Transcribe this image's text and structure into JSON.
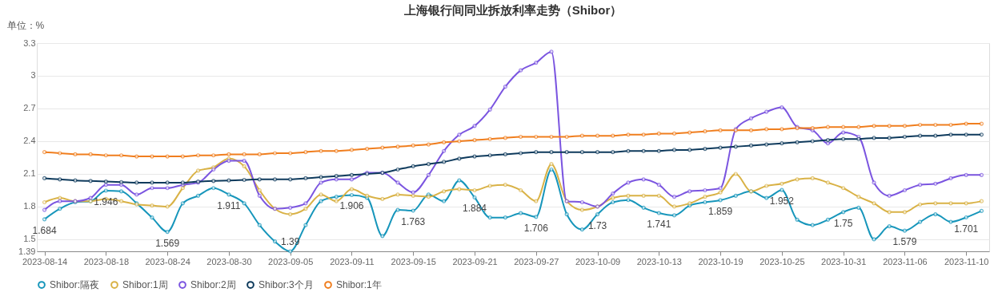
{
  "chart_data": {
    "type": "line",
    "title": "上海银行间同业拆放利率走势（Shibor）",
    "ylabel": "单位：%",
    "categories": [
      "2023-08-14",
      null,
      null,
      null,
      "2023-08-18",
      null,
      null,
      null,
      "2023-08-24",
      null,
      null,
      null,
      "2023-08-30",
      null,
      null,
      null,
      "2023-09-05",
      null,
      null,
      null,
      "2023-09-11",
      null,
      null,
      null,
      "2023-09-15",
      null,
      null,
      null,
      "2023-09-21",
      null,
      null,
      null,
      "2023-09-27",
      null,
      null,
      null,
      "2023-10-09",
      null,
      null,
      null,
      "2023-10-13",
      null,
      null,
      null,
      "2023-10-19",
      null,
      null,
      null,
      "2023-10-25",
      null,
      null,
      null,
      "2023-10-31",
      null,
      null,
      null,
      "2023-11-06",
      null,
      null,
      null,
      "2023-11-10",
      null
    ],
    "ylim": [
      1.39,
      3.3
    ],
    "yticks": [
      1.39,
      1.5,
      1.8,
      2.1,
      2.4,
      2.7,
      3,
      3.3
    ],
    "grid": "y",
    "legend": "bottom",
    "marker": "circle",
    "line_style": "solid",
    "series": [
      {
        "name": "Shibor:隔夜",
        "color": "#1796bb",
        "values": [
          1.684,
          1.78,
          1.84,
          1.85,
          1.946,
          1.94,
          1.83,
          1.7,
          1.569,
          1.83,
          1.9,
          1.97,
          1.911,
          1.83,
          1.63,
          1.48,
          1.39,
          1.63,
          1.85,
          1.89,
          1.906,
          1.88,
          1.53,
          1.77,
          1.763,
          1.91,
          1.85,
          2.04,
          1.884,
          1.7,
          1.7,
          1.74,
          1.706,
          2.14,
          1.73,
          1.59,
          1.73,
          1.84,
          1.86,
          1.79,
          1.741,
          1.72,
          1.81,
          1.84,
          1.859,
          1.9,
          1.94,
          1.88,
          1.952,
          1.68,
          1.63,
          1.68,
          1.75,
          1.79,
          1.5,
          1.62,
          1.579,
          1.66,
          1.73,
          1.66,
          1.701,
          1.76
        ],
        "value_labels": [
          "1.684",
          null,
          null,
          null,
          "1.946",
          null,
          null,
          null,
          "1.569",
          null,
          null,
          null,
          "1.911",
          null,
          null,
          null,
          "1.39",
          null,
          null,
          null,
          "1.906",
          null,
          null,
          null,
          "1.763",
          null,
          null,
          null,
          "1.884",
          null,
          null,
          null,
          "1.706",
          null,
          null,
          null,
          "1.73",
          null,
          null,
          null,
          "1.741",
          null,
          null,
          null,
          "1.859",
          null,
          null,
          null,
          "1.952",
          null,
          null,
          null,
          "1.75",
          null,
          null,
          null,
          "1.579",
          null,
          null,
          null,
          "1.701",
          null
        ]
      },
      {
        "name": "Shibor:1周",
        "color": "#d9b246",
        "values": [
          1.84,
          1.88,
          1.85,
          1.85,
          1.87,
          1.85,
          1.82,
          1.81,
          1.8,
          1.97,
          2.13,
          2.16,
          2.24,
          2.17,
          1.95,
          1.78,
          1.73,
          1.78,
          1.91,
          1.85,
          1.96,
          1.9,
          1.87,
          1.91,
          1.9,
          1.89,
          1.94,
          1.96,
          1.95,
          1.99,
          2.0,
          1.95,
          1.85,
          2.19,
          1.85,
          1.77,
          1.8,
          1.88,
          1.9,
          1.9,
          1.9,
          1.8,
          1.83,
          1.89,
          1.93,
          2.1,
          1.94,
          1.99,
          2.01,
          2.05,
          2.06,
          2.02,
          1.97,
          1.89,
          1.83,
          1.75,
          1.75,
          1.82,
          1.83,
          1.83,
          1.83,
          1.85
        ]
      },
      {
        "name": "Shibor:2周",
        "color": "#7b55e0",
        "values": [
          1.77,
          1.85,
          1.85,
          1.88,
          2.0,
          2.0,
          1.91,
          1.97,
          1.97,
          2.0,
          2.02,
          2.14,
          2.22,
          2.22,
          1.9,
          1.78,
          1.79,
          1.83,
          2.02,
          2.05,
          2.05,
          2.11,
          2.11,
          2.02,
          1.93,
          2.09,
          2.31,
          2.46,
          2.54,
          2.69,
          2.9,
          3.05,
          3.12,
          3.22,
          1.85,
          1.84,
          1.8,
          1.92,
          2.02,
          2.05,
          2.0,
          1.89,
          1.94,
          1.95,
          1.97,
          2.51,
          2.61,
          2.67,
          2.71,
          2.53,
          2.5,
          2.38,
          2.48,
          2.44,
          2.02,
          1.9,
          1.95,
          2.0,
          2.01,
          2.06,
          2.09,
          2.09
        ]
      },
      {
        "name": "Shibor:3个月",
        "color": "#0e3a5c",
        "values": [
          2.06,
          2.05,
          2.04,
          2.035,
          2.03,
          2.025,
          2.02,
          2.02,
          2.02,
          2.02,
          2.03,
          2.035,
          2.04,
          2.045,
          2.05,
          2.05,
          2.05,
          2.06,
          2.07,
          2.08,
          2.09,
          2.1,
          2.11,
          2.14,
          2.17,
          2.19,
          2.21,
          2.24,
          2.26,
          2.27,
          2.28,
          2.29,
          2.3,
          2.3,
          2.3,
          2.3,
          2.3,
          2.3,
          2.31,
          2.31,
          2.31,
          2.32,
          2.32,
          2.33,
          2.34,
          2.35,
          2.36,
          2.37,
          2.38,
          2.39,
          2.4,
          2.41,
          2.42,
          2.42,
          2.43,
          2.43,
          2.44,
          2.45,
          2.45,
          2.46,
          2.46,
          2.46
        ]
      },
      {
        "name": "Shibor:1年",
        "color": "#f07e1e",
        "values": [
          2.3,
          2.29,
          2.28,
          2.28,
          2.27,
          2.27,
          2.26,
          2.26,
          2.26,
          2.26,
          2.27,
          2.27,
          2.28,
          2.28,
          2.28,
          2.29,
          2.29,
          2.3,
          2.31,
          2.31,
          2.32,
          2.33,
          2.34,
          2.35,
          2.36,
          2.37,
          2.39,
          2.4,
          2.41,
          2.42,
          2.43,
          2.44,
          2.44,
          2.44,
          2.44,
          2.45,
          2.45,
          2.45,
          2.46,
          2.46,
          2.47,
          2.47,
          2.48,
          2.49,
          2.5,
          2.5,
          2.5,
          2.51,
          2.51,
          2.52,
          2.52,
          2.53,
          2.53,
          2.53,
          2.54,
          2.54,
          2.54,
          2.55,
          2.55,
          2.55,
          2.56,
          2.56
        ]
      }
    ]
  }
}
